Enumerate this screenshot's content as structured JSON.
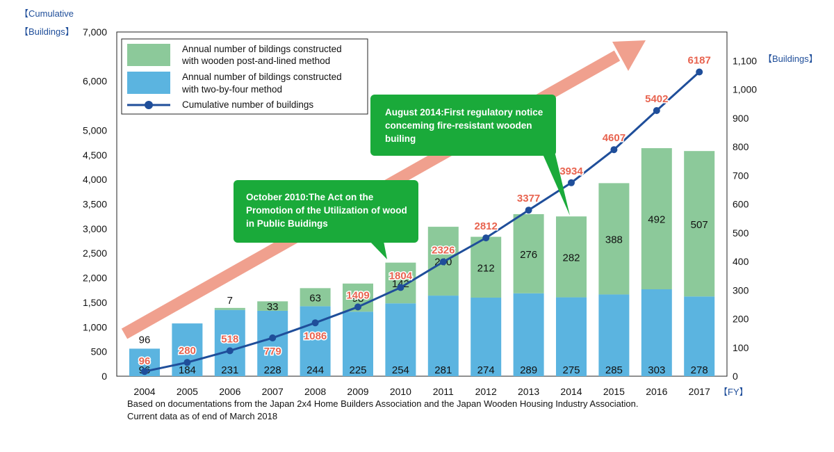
{
  "chart_data": {
    "type": "bar",
    "categories": [
      "2004",
      "2005",
      "2006",
      "2007",
      "2008",
      "2009",
      "2010",
      "2011",
      "2012",
      "2013",
      "2014",
      "2015",
      "2016",
      "2017"
    ],
    "xlabel": "【FY】",
    "y_left": {
      "label_line1": "【Cumulative",
      "label_line2": "【Buildings】",
      "ylim": [
        0,
        7000
      ],
      "ticks": [
        "0",
        "500",
        "1,000",
        "1,500",
        "2,000",
        "2,500",
        "3,000",
        "3,500",
        "4,000",
        "4,500",
        "5,000",
        "6,000",
        "7,000"
      ],
      "tick_values": [
        0,
        500,
        1000,
        1500,
        2000,
        2500,
        3000,
        3500,
        4000,
        4500,
        5000,
        6000,
        7000
      ]
    },
    "y_right": {
      "label": "【Buildings】",
      "ylim": [
        0,
        1200
      ],
      "ticks": [
        "0",
        "100",
        "200",
        "300",
        "400",
        "500",
        "600",
        "700",
        "800",
        "900",
        "1,000",
        "1,100"
      ],
      "tick_values": [
        0,
        100,
        200,
        300,
        400,
        500,
        600,
        700,
        800,
        900,
        1000,
        1100
      ]
    },
    "series": [
      {
        "name": "Annual number of bildings constructed with two-by-four method",
        "legend_line1": "Annual number of bildings constructed",
        "legend_line2": " with two-by-four method",
        "color": "#5bb4e0",
        "axis": "right",
        "values": [
          96,
          184,
          231,
          228,
          244,
          225,
          254,
          281,
          274,
          289,
          275,
          285,
          303,
          278
        ],
        "labels": [
          "96",
          "184",
          "231",
          "228",
          "244",
          "225",
          "254",
          "281",
          "274",
          "289",
          "275",
          "285",
          "303",
          "278"
        ]
      },
      {
        "name": "Annual number of bildings constructed with wooden post-and-lined method",
        "legend_line1": "Annual number of bildings constructed",
        "legend_line2": " with wooden post-and-lined method",
        "color": "#8cc99a",
        "axis": "right",
        "values": [
          0,
          0,
          7,
          33,
          63,
          98,
          142,
          240,
          212,
          276,
          282,
          388,
          492,
          507
        ],
        "labels": [
          "",
          "",
          "7",
          "33",
          "63",
          "98",
          "142",
          "240",
          "212",
          "276",
          "282",
          "388",
          "492",
          "507"
        ]
      },
      {
        "name": "Cumulative number of buildings",
        "legend_line1": "Cumulative number of buildings",
        "color": "#1f4e9a",
        "axis": "left",
        "type": "line",
        "values": [
          96,
          280,
          518,
          779,
          1086,
          1409,
          1804,
          2326,
          2812,
          3377,
          3934,
          4607,
          5402,
          6187
        ],
        "labels": [
          "96",
          "280",
          "518",
          "779",
          "1086",
          "1409",
          "1804",
          "2326",
          "2812",
          "3377",
          "3934",
          "4607",
          "5402",
          "6187"
        ]
      }
    ],
    "annotations": [
      {
        "id": "oct2010",
        "lines": [
          "October 2010:The Act on the",
          "Promotion of the Utilization of wood",
          "in  Public Buidings"
        ]
      },
      {
        "id": "aug2014",
        "lines": [
          "August 2014:First regulatory notice",
          "conceming fire-resistant wooden",
          " builing"
        ]
      }
    ],
    "source": [
      "Based on documentations from the Japan 2x4 Home Builders Association and the Japan Wooden Housing Industry Association.",
      " Current data as of end of March 2018"
    ],
    "colors": {
      "bar_two_by_four": "#5bb4e0",
      "bar_post_and_lined": "#8cc99a",
      "line": "#1f4e9a",
      "cumulative_labels": "#e8634f",
      "trend_arrow": "#f0a08e",
      "callout": "#1aaa3a",
      "axis_title": "#1f4e9a"
    }
  }
}
